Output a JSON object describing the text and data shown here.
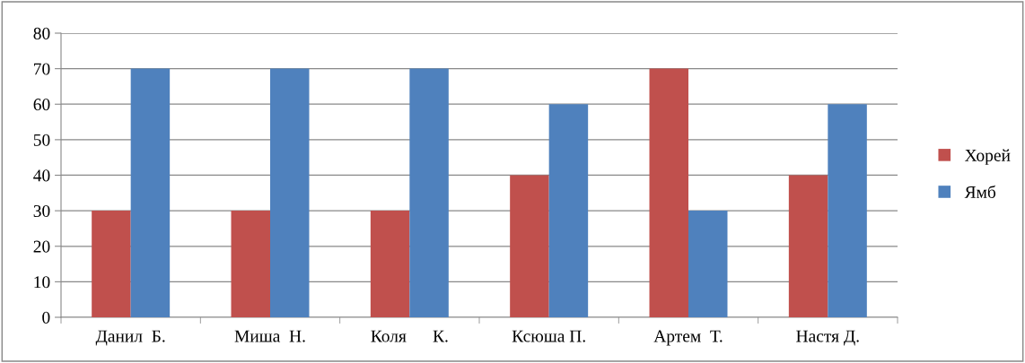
{
  "chart_data": {
    "type": "bar",
    "categories": [
      "Данил  Б.",
      "Миша  Н.",
      "Коля      К.",
      "Ксюша П.",
      "Артем  Т.",
      "Настя Д."
    ],
    "series": [
      {
        "name": "Хорей",
        "color": "#c0504d",
        "values": [
          30,
          30,
          30,
          40,
          70,
          40
        ]
      },
      {
        "name": "Ямб",
        "color": "#4f81bd",
        "values": [
          70,
          70,
          70,
          60,
          30,
          60
        ]
      }
    ],
    "ylim": [
      0,
      80
    ],
    "yticks": [
      0,
      10,
      20,
      30,
      40,
      50,
      60,
      70,
      80
    ],
    "grid": "y",
    "legend": "right"
  }
}
